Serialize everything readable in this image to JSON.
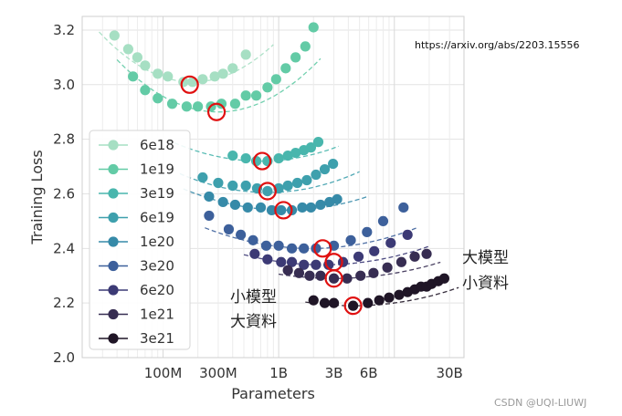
{
  "chart_data": {
    "type": "scatter",
    "xlabel": "Parameters",
    "ylabel": "Training Loss",
    "xscale": "log",
    "xlim": [
      20000000,
      40000000000
    ],
    "ylim": [
      2.0,
      3.25
    ],
    "yticks": [
      {
        "value": 2.0,
        "label": "2.0"
      },
      {
        "value": 2.2,
        "label": "2.2"
      },
      {
        "value": 2.4,
        "label": "2.4"
      },
      {
        "value": 2.6,
        "label": "2.6"
      },
      {
        "value": 2.8,
        "label": "2.8"
      },
      {
        "value": 3.0,
        "label": "3.0"
      },
      {
        "value": 3.2,
        "label": "3.2"
      }
    ],
    "xticks": [
      {
        "value": 100000000,
        "label": "100M"
      },
      {
        "value": 300000000,
        "label": "300M"
      },
      {
        "value": 1000000000,
        "label": "1B"
      },
      {
        "value": 3000000000,
        "label": "3B"
      },
      {
        "value": 6000000000,
        "label": "6B"
      },
      {
        "value": 30000000000,
        "label": "30B"
      }
    ],
    "grid": true,
    "legend_position": "left",
    "series": [
      {
        "name": "6e18",
        "color": "#a6dfc3",
        "points": [
          [
            38,
            3.18
          ],
          [
            50,
            3.13
          ],
          [
            60,
            3.1
          ],
          [
            70,
            3.07
          ],
          [
            90,
            3.04
          ],
          [
            110,
            3.03
          ],
          [
            150,
            3.01
          ],
          [
            180,
            3.01
          ],
          [
            220,
            3.02
          ],
          [
            280,
            3.03
          ],
          [
            330,
            3.04
          ],
          [
            400,
            3.06
          ],
          [
            520,
            3.11
          ]
        ],
        "fit": {
          "min": 28,
          "opt": 180,
          "loss": 3.01,
          "k": 0.28,
          "xmax": 900
        }
      },
      {
        "name": "1e19",
        "color": "#63cba6",
        "points": [
          [
            55,
            3.03
          ],
          [
            70,
            2.98
          ],
          [
            90,
            2.95
          ],
          [
            120,
            2.93
          ],
          [
            160,
            2.92
          ],
          [
            200,
            2.92
          ],
          [
            260,
            2.92
          ],
          [
            320,
            2.93
          ],
          [
            420,
            2.93
          ],
          [
            520,
            2.96
          ],
          [
            640,
            2.96
          ],
          [
            800,
            2.99
          ],
          [
            950,
            3.02
          ],
          [
            1150,
            3.06
          ],
          [
            1400,
            3.1
          ],
          [
            1700,
            3.14
          ],
          [
            2000,
            3.21
          ]
        ],
        "fit": {
          "min": 40,
          "opt": 300,
          "loss": 2.9,
          "k": 0.25,
          "xmax": 2300
        }
      },
      {
        "name": "3e19",
        "color": "#49b6ad",
        "points": [
          [
            400,
            2.74
          ],
          [
            520,
            2.73
          ],
          [
            640,
            2.72
          ],
          [
            800,
            2.72
          ],
          [
            1000,
            2.73
          ],
          [
            1200,
            2.74
          ],
          [
            1400,
            2.75
          ],
          [
            1650,
            2.76
          ],
          [
            1900,
            2.77
          ],
          [
            2200,
            2.79
          ]
        ],
        "fit": {
          "min": 110,
          "opt": 700,
          "loss": 2.72,
          "k": 0.12,
          "xmax": 3300
        }
      },
      {
        "name": "6e19",
        "color": "#3ea0ad",
        "points": [
          [
            220,
            2.66
          ],
          [
            300,
            2.64
          ],
          [
            400,
            2.63
          ],
          [
            520,
            2.63
          ],
          [
            650,
            2.62
          ],
          [
            800,
            2.61
          ],
          [
            1000,
            2.62
          ],
          [
            1200,
            2.63
          ],
          [
            1450,
            2.64
          ],
          [
            1750,
            2.65
          ],
          [
            2100,
            2.67
          ],
          [
            2500,
            2.69
          ],
          [
            2950,
            2.71
          ]
        ],
        "fit": {
          "min": 140,
          "opt": 800,
          "loss": 2.605,
          "k": 0.12,
          "xmax": 5000
        }
      },
      {
        "name": "1e20",
        "color": "#368aa8",
        "points": [
          [
            250,
            2.59
          ],
          [
            330,
            2.57
          ],
          [
            420,
            2.56
          ],
          [
            540,
            2.55
          ],
          [
            700,
            2.55
          ],
          [
            870,
            2.54
          ],
          [
            1050,
            2.54
          ],
          [
            1300,
            2.54
          ],
          [
            1600,
            2.55
          ],
          [
            1900,
            2.55
          ],
          [
            2300,
            2.56
          ],
          [
            2750,
            2.57
          ],
          [
            3200,
            2.58
          ]
        ],
        "fit": {
          "min": 150,
          "opt": 1150,
          "loss": 2.54,
          "k": 0.1,
          "xmax": 6000
        }
      },
      {
        "name": "3e20",
        "color": "#3d609b",
        "points": [
          [
            250,
            2.52
          ],
          [
            370,
            2.47
          ],
          [
            470,
            2.45
          ],
          [
            600,
            2.43
          ],
          [
            780,
            2.41
          ],
          [
            1000,
            2.41
          ],
          [
            1300,
            2.4
          ],
          [
            1650,
            2.4
          ],
          [
            2100,
            2.4
          ],
          [
            3000,
            2.41
          ],
          [
            4200,
            2.43
          ],
          [
            5800,
            2.46
          ],
          [
            8000,
            2.5
          ],
          [
            12000,
            2.55
          ]
        ],
        "fit": {
          "min": 230,
          "opt": 1900,
          "loss": 2.4,
          "k": 0.09,
          "xmax": 16000
        }
      },
      {
        "name": "6e20",
        "color": "#3c3a75",
        "points": [
          [
            620,
            2.38
          ],
          [
            800,
            2.36
          ],
          [
            1050,
            2.35
          ],
          [
            1300,
            2.35
          ],
          [
            1650,
            2.34
          ],
          [
            2100,
            2.34
          ],
          [
            2700,
            2.34
          ],
          [
            3600,
            2.35
          ],
          [
            4900,
            2.37
          ],
          [
            6700,
            2.39
          ],
          [
            9300,
            2.42
          ],
          [
            13000,
            2.45
          ]
        ],
        "fit": {
          "min": 500,
          "opt": 2400,
          "loss": 2.34,
          "k": 0.08,
          "xmax": 20000
        }
      },
      {
        "name": "1e21",
        "color": "#372d52",
        "points": [
          [
            1200,
            2.32
          ],
          [
            1500,
            2.31
          ],
          [
            1850,
            2.3
          ],
          [
            2300,
            2.3
          ],
          [
            3000,
            2.29
          ],
          [
            3900,
            2.29
          ],
          [
            5100,
            2.3
          ],
          [
            6600,
            2.31
          ],
          [
            8700,
            2.33
          ],
          [
            11500,
            2.35
          ],
          [
            15000,
            2.37
          ],
          [
            19000,
            2.38
          ]
        ],
        "fit": {
          "min": 1000,
          "opt": 3000,
          "loss": 2.29,
          "k": 0.07,
          "xmax": 25000
        }
      },
      {
        "name": "3e21",
        "color": "#1f1526",
        "points": [
          [
            2000,
            2.21
          ],
          [
            2500,
            2.2
          ],
          [
            3000,
            2.2
          ],
          [
            4400,
            2.19
          ],
          [
            5900,
            2.2
          ],
          [
            7400,
            2.21
          ],
          [
            9000,
            2.22
          ],
          [
            11000,
            2.23
          ],
          [
            13000,
            2.24
          ],
          [
            15000,
            2.25
          ],
          [
            17000,
            2.26
          ],
          [
            19000,
            2.26
          ],
          [
            21000,
            2.27
          ],
          [
            24000,
            2.28
          ],
          [
            27000,
            2.29
          ]
        ],
        "fit": {
          "min": 1700,
          "opt": 4400,
          "loss": 2.19,
          "k": 0.08,
          "xmax": 36000
        }
      }
    ],
    "optimal_markers": [
      [
        170,
        3.0
      ],
      [
        290,
        2.9
      ],
      [
        720,
        2.72
      ],
      [
        800,
        2.61
      ],
      [
        1100,
        2.54
      ],
      [
        2400,
        2.4
      ],
      [
        3000,
        2.35
      ],
      [
        3000,
        2.29
      ],
      [
        4400,
        2.19
      ]
    ],
    "annotations": [
      {
        "text": "小模型",
        "anchor": "lower-middle-left"
      },
      {
        "text": "大資料",
        "anchor": "lower-middle-left"
      },
      {
        "text": "大模型",
        "anchor": "right"
      },
      {
        "text": "小資料",
        "anchor": "right"
      }
    ]
  },
  "source_url": "https://arxiv.org/abs/2203.15556",
  "watermark": "CSDN @UQI-LIUWJ"
}
